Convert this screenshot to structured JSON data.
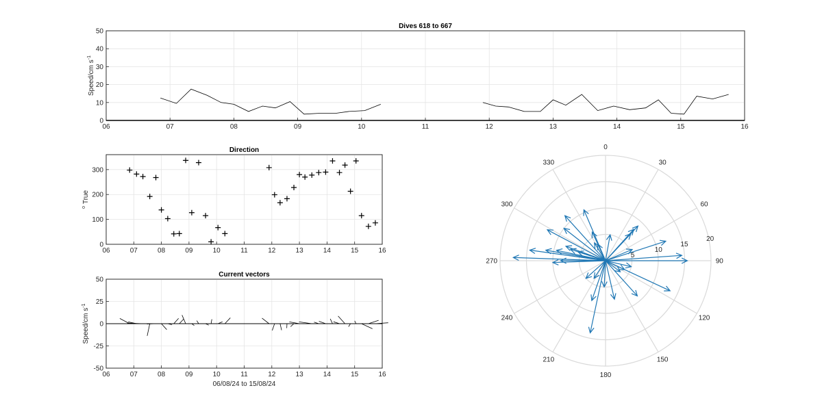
{
  "colors": {
    "arrows": "#1f77b4",
    "mean_arrow": "#d62728",
    "line": "#000000"
  },
  "chart_data": [
    {
      "id": "speed",
      "type": "line",
      "title": "Dives 618 to 667",
      "xlabel": "",
      "ylabel": "Speed/cm s",
      "ylabel_sup": "-1",
      "xlim": [
        6,
        16
      ],
      "ylim": [
        0,
        50
      ],
      "x_ticks": [
        6,
        7,
        8,
        9,
        10,
        11,
        12,
        13,
        14,
        15,
        16
      ],
      "x_tick_labels": [
        "06",
        "07",
        "08",
        "09",
        "10",
        "11",
        "12",
        "13",
        "14",
        "15",
        "16"
      ],
      "y_ticks": [
        0,
        10,
        20,
        30,
        40,
        50
      ],
      "y_tick_labels": [
        "0",
        "10",
        "20",
        "30",
        "40",
        "50"
      ],
      "grid": true,
      "series": [
        {
          "x": [
            6.85,
            7.1,
            7.33,
            7.58,
            7.8,
            8.0,
            8.23,
            8.45,
            8.65,
            8.88,
            9.1,
            9.35,
            9.6,
            9.8,
            10.05,
            10.3
          ],
          "y": [
            12.5,
            9.5,
            17.5,
            14.0,
            10.0,
            9.0,
            5.0,
            8.0,
            7.0,
            10.5,
            3.5,
            4.0,
            4.0,
            5.0,
            5.5,
            9.0
          ]
        },
        {
          "x": [
            11.9,
            12.1,
            12.3,
            12.55,
            12.8,
            13.0,
            13.2,
            13.45,
            13.7,
            13.95,
            14.2,
            14.45,
            14.65,
            14.85,
            15.05,
            15.25,
            15.5,
            15.75
          ],
          "y": [
            10.0,
            8.0,
            7.5,
            5.0,
            5.0,
            11.5,
            8.5,
            14.5,
            5.5,
            8.0,
            6.0,
            7.0,
            11.5,
            4.0,
            3.5,
            13.5,
            12.0,
            14.5
          ]
        }
      ]
    },
    {
      "id": "direction",
      "type": "scatter",
      "title": "Direction",
      "ylabel": "True",
      "ylabel_sup": "o",
      "xlim": [
        6,
        16
      ],
      "ylim": [
        0,
        360
      ],
      "x_ticks": [
        6,
        7,
        8,
        9,
        10,
        11,
        12,
        13,
        14,
        15,
        16
      ],
      "x_tick_labels": [
        "06",
        "07",
        "08",
        "09",
        "10",
        "11",
        "12",
        "13",
        "14",
        "15",
        "16"
      ],
      "y_ticks": [
        0,
        100,
        200,
        300
      ],
      "y_tick_labels": [
        "0",
        "100",
        "200",
        "300"
      ],
      "grid": true,
      "marker": "+",
      "x": [
        6.85,
        7.1,
        7.33,
        7.58,
        7.8,
        8.0,
        8.23,
        8.45,
        8.65,
        8.88,
        9.1,
        9.35,
        9.6,
        9.8,
        10.05,
        10.3,
        11.9,
        12.1,
        12.3,
        12.55,
        12.8,
        13.0,
        13.2,
        13.45,
        13.7,
        13.95,
        14.2,
        14.45,
        14.65,
        14.85,
        15.05,
        15.25,
        15.5,
        15.75
      ],
      "y": [
        298,
        282,
        272,
        192,
        268,
        138,
        103,
        42,
        43,
        337,
        127,
        328,
        115,
        10,
        67,
        43,
        308,
        199,
        167,
        183,
        228,
        280,
        270,
        278,
        288,
        290,
        335,
        288,
        318,
        213,
        335,
        115,
        72,
        86
      ]
    },
    {
      "id": "vectors",
      "type": "line",
      "title": "Current vectors",
      "xlabel": "06/08/24 to 15/08/24",
      "ylabel": "Speed/cm s",
      "ylabel_sup": "-1",
      "xlim": [
        6,
        16
      ],
      "ylim": [
        -50,
        50
      ],
      "x_ticks": [
        6,
        7,
        8,
        9,
        10,
        11,
        12,
        13,
        14,
        15,
        16
      ],
      "x_tick_labels": [
        "06",
        "07",
        "08",
        "09",
        "10",
        "11",
        "12",
        "13",
        "14",
        "15",
        "16"
      ],
      "y_ticks": [
        -50,
        -25,
        0,
        25,
        50
      ],
      "y_tick_labels": [
        "-50",
        "-25",
        "0",
        "25",
        "50"
      ],
      "grid": true,
      "series": [
        {
          "name": "",
          "x": [
            6.85,
            7.1,
            7.33,
            7.58,
            7.8,
            8.0,
            8.23,
            8.45,
            8.65,
            8.88,
            9.1,
            9.35,
            9.6,
            9.8,
            10.05,
            10.3,
            11.9,
            12.1,
            12.3,
            12.55,
            12.8,
            13.0,
            13.2,
            13.45,
            13.7,
            13.95,
            14.2,
            14.45,
            14.65,
            14.85,
            15.05,
            15.25,
            15.5,
            15.75
          ],
          "speed": [
            12.5,
            9.5,
            17.5,
            14.0,
            10.0,
            9.0,
            5.0,
            8.0,
            7.0,
            10.5,
            3.5,
            4.0,
            4.0,
            5.0,
            5.5,
            9.0,
            10.0,
            8.0,
            7.5,
            5.0,
            5.0,
            11.5,
            8.5,
            14.5,
            5.5,
            8.0,
            6.0,
            7.0,
            11.5,
            4.0,
            3.5,
            13.5,
            12.0,
            14.5
          ],
          "direction": [
            298,
            282,
            272,
            192,
            268,
            138,
            103,
            42,
            43,
            337,
            127,
            328,
            115,
            10,
            67,
            43,
            308,
            199,
            167,
            183,
            228,
            280,
            270,
            278,
            288,
            290,
            335,
            288,
            318,
            213,
            335,
            115,
            72,
            86
          ]
        }
      ]
    },
    {
      "id": "polar",
      "type": "polar",
      "theta_zero": "top",
      "theta_direction": "clockwise",
      "rlim": [
        0,
        20
      ],
      "r_ticks": [
        5,
        10,
        15,
        20
      ],
      "r_tick_labels": [
        "5",
        "10",
        "15",
        "20"
      ],
      "theta_ticks": [
        0,
        30,
        60,
        90,
        120,
        150,
        180,
        210,
        240,
        270,
        300,
        330
      ],
      "theta_tick_labels": [
        "0",
        "30",
        "60",
        "90",
        "120",
        "150",
        "180",
        "210",
        "240",
        "270",
        "300",
        "330"
      ],
      "mean_vector": {
        "direction": 90,
        "speed": 15.5
      }
    }
  ]
}
